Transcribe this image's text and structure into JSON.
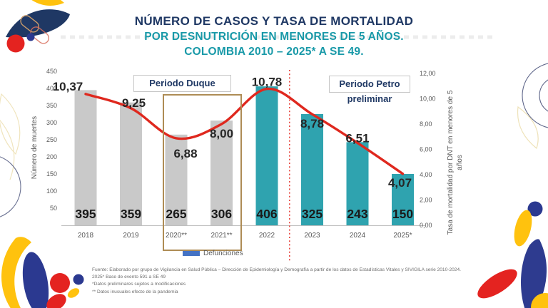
{
  "title": {
    "line1": "NÚMERO DE CASOS Y TASA DE MORTALIDAD",
    "line2": "POR DESNUTRICIÓN EN MENORES DE 5 AÑOS.",
    "line3": "COLOMBIA 2010 – 2025* A SE 49."
  },
  "annotations": {
    "periodo_duque": "Periodo Duque",
    "periodo_petro_line1": "Periodo Petro",
    "periodo_petro_line2": "preliminar"
  },
  "legend": {
    "defunciones": "Defunciones",
    "swatch_color": "#4472C4"
  },
  "chart_data": {
    "type": "bar",
    "title": "Número de casos y tasa de mortalidad por desnutrición en menores de 5 años, Colombia 2010–2025* a SE 49",
    "categories": [
      "2018",
      "2019",
      "2020**",
      "2021**",
      "2022",
      "2023",
      "2024",
      "2025*"
    ],
    "series": [
      {
        "name": "Defunciones",
        "type": "bar",
        "axis": "left",
        "values": [
          395,
          359,
          265,
          306,
          406,
          325,
          243,
          150
        ],
        "labels": [
          "395",
          "359",
          "265",
          "306",
          "406",
          "325",
          "243",
          "150"
        ],
        "bar_colors": [
          "#C9C9C9",
          "#C9C9C9",
          "#C9C9C9",
          "#C9C9C9",
          "#2FA3AF",
          "#2FA3AF",
          "#2FA3AF",
          "#2FA3AF"
        ]
      },
      {
        "name": "Tasa de mortalidad por DNT en menores de 5 años",
        "type": "line",
        "axis": "right",
        "values": [
          10.37,
          9.25,
          6.88,
          8.0,
          10.78,
          8.78,
          6.51,
          4.07
        ],
        "labels": [
          "10,37",
          "9,25",
          "6,88",
          "8,00",
          "10,78",
          "8,78",
          "6,51",
          "4,07"
        ],
        "color": "#DF281E"
      }
    ],
    "left_axis": {
      "title": "Número de muertes",
      "min": 0,
      "max": 450,
      "ticks": [
        450,
        400,
        350,
        300,
        250,
        200,
        150,
        100,
        50
      ]
    },
    "right_axis": {
      "title_line1": "Tasa de mortalidad por DNT en menores de 5",
      "title_line2": "años",
      "min": 0,
      "max": 12,
      "ticks": [
        "12,00",
        "10,00",
        "8,00",
        "6,00",
        "4,00",
        "2,00",
        "0,00"
      ]
    },
    "divider_between": [
      "2022",
      "2023"
    ],
    "legend_position": "bottom",
    "grid": false
  },
  "footer": {
    "line1": "Fuente: Elaborado por grupo de Vigilancia en Salud Pública – Dirección de Epidemiología y Demografía a partir de los datos de Estadísticas Vitales y SIVIGILA serie 2010-2024.",
    "line2": "2025* Base de evento 591 a SE 49",
    "line3": "*Datos preliminares sujetos a modificaciones",
    "line4": "** Datos inusuales efecto de la pandemia"
  },
  "colors": {
    "navy": "#1F3864",
    "teal_title": "#1899A8",
    "bar_gray": "#C9C9C9",
    "bar_teal": "#2FA3AF",
    "line_red": "#DF281E",
    "divider_red": "#E8453E",
    "brown_box": "#AE8C55",
    "axis_text": "#595959"
  }
}
